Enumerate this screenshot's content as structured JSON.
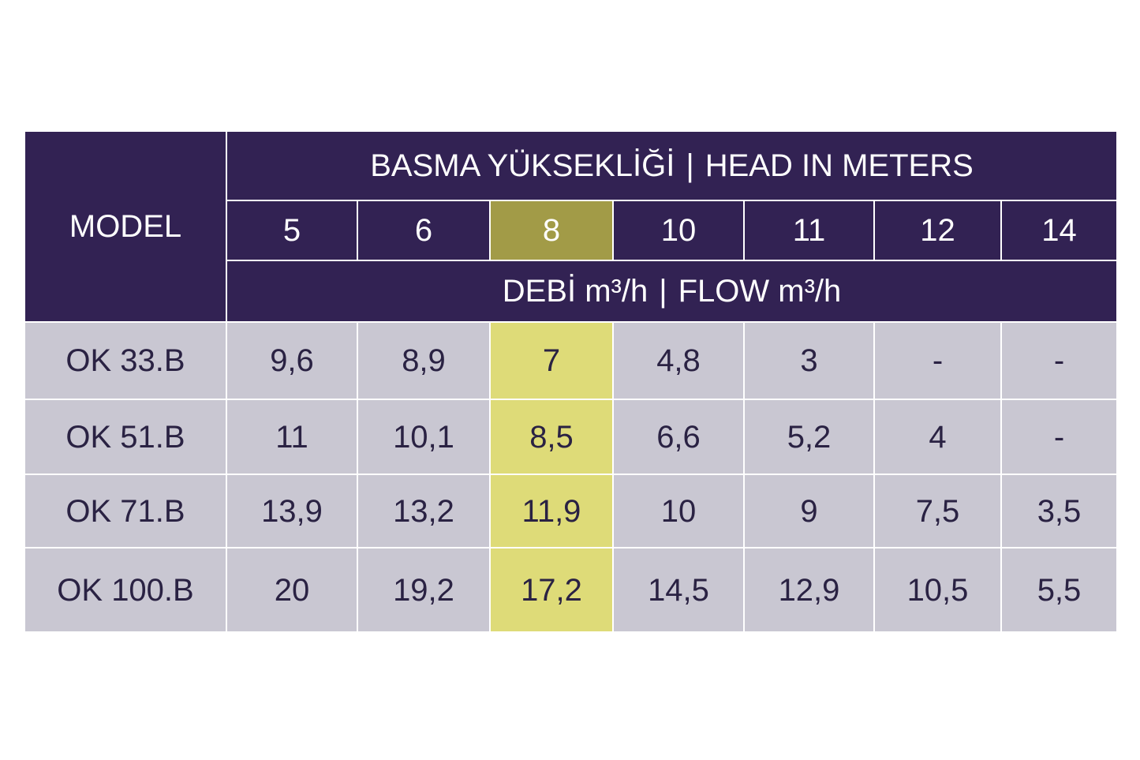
{
  "table": {
    "model_header": "MODEL",
    "head_title_tr": "BASMA YÜKSEKLİĞİ",
    "head_title_sep": "|",
    "head_title_en": "HEAD IN METERS",
    "flow_title_tr": "DEBİ m³/h",
    "flow_title_sep": "|",
    "flow_title_en": "FLOW m³/h",
    "highlight_color": "#dedb78",
    "header_color": "#322253",
    "body_color": "#c9c7d2"
  },
  "chart_data": {
    "type": "table",
    "columns": [
      "5",
      "6",
      "8",
      "10",
      "11",
      "12",
      "14"
    ],
    "highlighted_column": "8",
    "rows": [
      {
        "model": "OK 33.B",
        "values": [
          "9,6",
          "8,9",
          "7",
          "4,8",
          "3",
          "-",
          "-"
        ]
      },
      {
        "model": "OK 51.B",
        "values": [
          "11",
          "10,1",
          "8,5",
          "6,6",
          "5,2",
          "4",
          "-"
        ]
      },
      {
        "model": "OK 71.B",
        "values": [
          "13,9",
          "13,2",
          "11,9",
          "10",
          "9",
          "7,5",
          "3,5"
        ]
      },
      {
        "model": "OK 100.B",
        "values": [
          "20",
          "19,2",
          "17,2",
          "14,5",
          "12,9",
          "10,5",
          "5,5"
        ]
      }
    ]
  }
}
